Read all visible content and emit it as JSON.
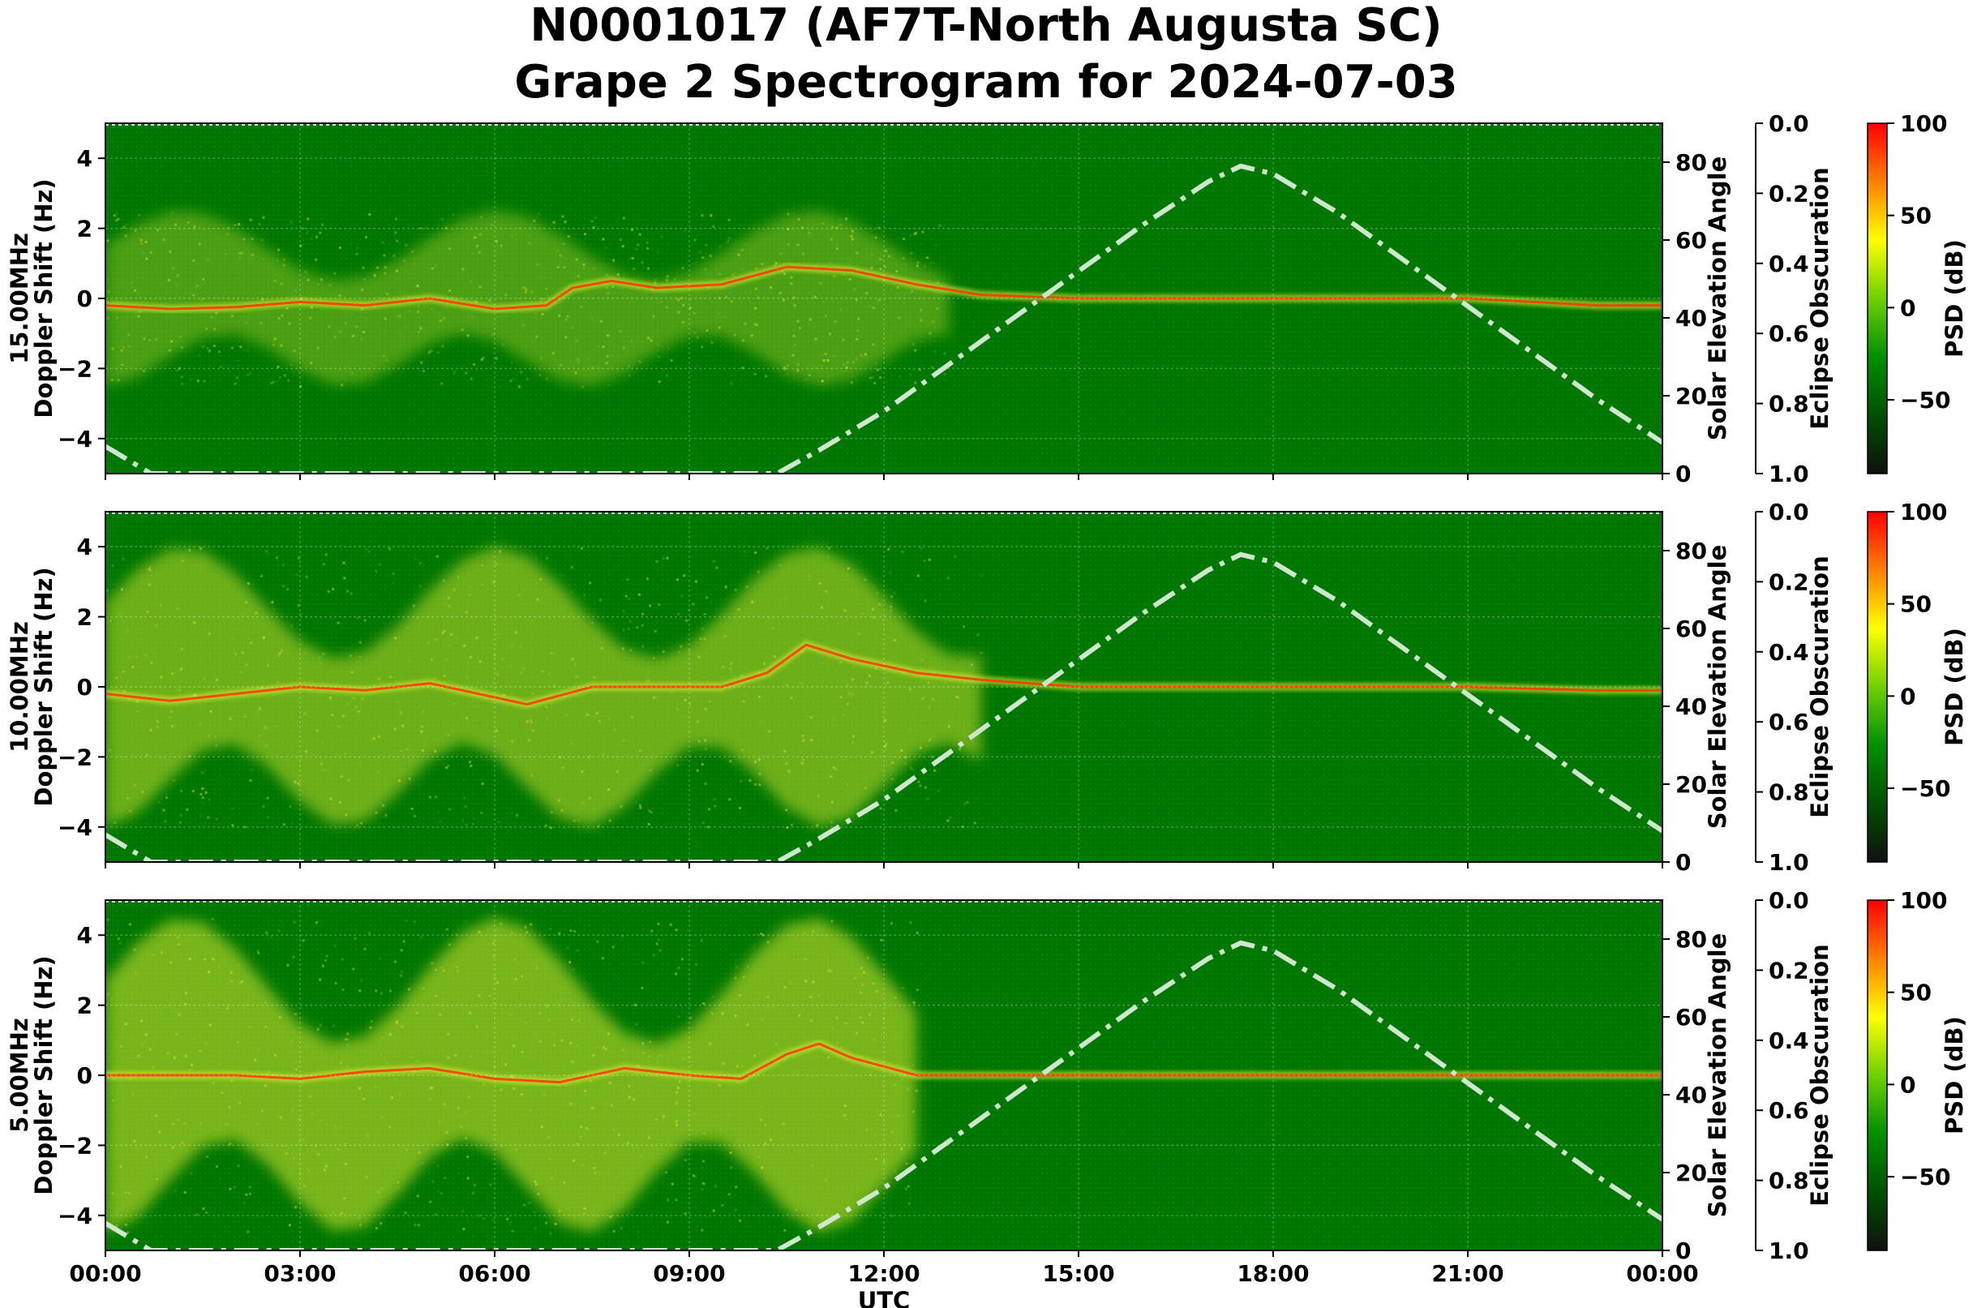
{
  "figure": {
    "title_line1": "N0001017 (AF7T-North Augusta SC)",
    "title_line2": "Grape 2 Spectrogram for 2024-07-03"
  },
  "chart_data": [
    {
      "type": "heatmap",
      "band": "15.00MHz",
      "ylabel_line1": "15.00MHz",
      "ylabel_line2": "Doppler Shift (Hz)",
      "xlabel": "",
      "x_ticks": [
        "00:00",
        "03:00",
        "06:00",
        "09:00",
        "12:00",
        "15:00",
        "18:00",
        "21:00",
        "00:00"
      ],
      "xlim_hours": [
        0,
        24
      ],
      "ylim": [
        -5,
        5
      ],
      "y_ticks": [
        4,
        2,
        0,
        -2,
        -4
      ],
      "carrier_trace": [
        [
          0,
          -0.2
        ],
        [
          1,
          -0.3
        ],
        [
          2,
          -0.25
        ],
        [
          3,
          -0.1
        ],
        [
          4,
          -0.2
        ],
        [
          5,
          0
        ],
        [
          6,
          -0.3
        ],
        [
          6.8,
          -0.2
        ],
        [
          7.2,
          0.3
        ],
        [
          7.8,
          0.5
        ],
        [
          8.5,
          0.3
        ],
        [
          9.5,
          0.4
        ],
        [
          10.5,
          0.9
        ],
        [
          11.5,
          0.8
        ],
        [
          12.5,
          0.4
        ],
        [
          13.5,
          0.1
        ],
        [
          15,
          0
        ],
        [
          18,
          0
        ],
        [
          21,
          0
        ],
        [
          23,
          -0.2
        ],
        [
          24,
          -0.2
        ]
      ],
      "solar_elevation": {
        "label": "Solar Elevation Angle",
        "ylim": [
          0,
          90
        ],
        "y_ticks": [
          80,
          60,
          40,
          20,
          0
        ],
        "points": [
          [
            0,
            7
          ],
          [
            0.7,
            0
          ],
          [
            10.35,
            0
          ],
          [
            11,
            6
          ],
          [
            12,
            16
          ],
          [
            13,
            28
          ],
          [
            14,
            40
          ],
          [
            15,
            52
          ],
          [
            16,
            64
          ],
          [
            17,
            75
          ],
          [
            17.5,
            79
          ],
          [
            18,
            77
          ],
          [
            19,
            67
          ],
          [
            20,
            55
          ],
          [
            21,
            43
          ],
          [
            22,
            31
          ],
          [
            23,
            19
          ],
          [
            24,
            8
          ]
        ]
      },
      "eclipse": {
        "label": "Eclipse Obscuration",
        "ylim": [
          1.0,
          0.0
        ],
        "y_ticks": [
          "0.0",
          "0.2",
          "0.4",
          "0.6",
          "0.8",
          "1.0"
        ]
      },
      "colorbar": {
        "label": "PSD (dB)",
        "range": [
          -90,
          100
        ],
        "ticks": [
          "100",
          "50",
          "0",
          "−50"
        ]
      }
    },
    {
      "type": "heatmap",
      "band": "10.00MHz",
      "ylabel_line1": "10.00MHz",
      "ylabel_line2": "Doppler Shift (Hz)",
      "xlabel": "",
      "x_ticks": [
        "00:00",
        "03:00",
        "06:00",
        "09:00",
        "12:00",
        "15:00",
        "18:00",
        "21:00",
        "00:00"
      ],
      "xlim_hours": [
        0,
        24
      ],
      "ylim": [
        -5,
        5
      ],
      "y_ticks": [
        4,
        2,
        0,
        -2,
        -4
      ],
      "carrier_trace": [
        [
          0,
          -0.2
        ],
        [
          1,
          -0.4
        ],
        [
          2,
          -0.2
        ],
        [
          3,
          0
        ],
        [
          4,
          -0.1
        ],
        [
          5,
          0.1
        ],
        [
          6,
          -0.3
        ],
        [
          6.5,
          -0.5
        ],
        [
          7.5,
          0
        ],
        [
          8.5,
          0
        ],
        [
          9.5,
          0
        ],
        [
          10.2,
          0.4
        ],
        [
          10.8,
          1.2
        ],
        [
          11.5,
          0.8
        ],
        [
          12.5,
          0.4
        ],
        [
          13.5,
          0.2
        ],
        [
          15,
          0
        ],
        [
          18,
          0
        ],
        [
          21,
          0
        ],
        [
          23,
          -0.1
        ],
        [
          24,
          -0.1
        ]
      ],
      "solar_elevation": {
        "label": "Solar Elevation Angle",
        "ylim": [
          0,
          90
        ],
        "y_ticks": [
          80,
          60,
          40,
          20,
          0
        ],
        "points": [
          [
            0,
            7
          ],
          [
            0.7,
            0
          ],
          [
            10.35,
            0
          ],
          [
            11,
            6
          ],
          [
            12,
            16
          ],
          [
            13,
            28
          ],
          [
            14,
            40
          ],
          [
            15,
            52
          ],
          [
            16,
            64
          ],
          [
            17,
            75
          ],
          [
            17.5,
            79
          ],
          [
            18,
            77
          ],
          [
            19,
            67
          ],
          [
            20,
            55
          ],
          [
            21,
            43
          ],
          [
            22,
            31
          ],
          [
            23,
            19
          ],
          [
            24,
            8
          ]
        ]
      },
      "eclipse": {
        "label": "Eclipse Obscuration",
        "ylim": [
          1.0,
          0.0
        ],
        "y_ticks": [
          "0.0",
          "0.2",
          "0.4",
          "0.6",
          "0.8",
          "1.0"
        ]
      },
      "colorbar": {
        "label": "PSD (dB)",
        "range": [
          -90,
          100
        ],
        "ticks": [
          "100",
          "50",
          "0",
          "−50"
        ]
      }
    },
    {
      "type": "heatmap",
      "band": "5.00MHz",
      "ylabel_line1": "5.00MHz",
      "ylabel_line2": "Doppler Shift (Hz)",
      "xlabel": "UTC",
      "x_ticks": [
        "00:00",
        "03:00",
        "06:00",
        "09:00",
        "12:00",
        "15:00",
        "18:00",
        "21:00",
        "00:00"
      ],
      "xlim_hours": [
        0,
        24
      ],
      "ylim": [
        -5,
        5
      ],
      "y_ticks": [
        4,
        2,
        0,
        -2,
        -4
      ],
      "carrier_trace": [
        [
          0,
          0
        ],
        [
          2,
          0
        ],
        [
          3,
          -0.1
        ],
        [
          4,
          0.1
        ],
        [
          5,
          0.2
        ],
        [
          6,
          -0.1
        ],
        [
          7,
          -0.2
        ],
        [
          8,
          0.2
        ],
        [
          9,
          0
        ],
        [
          9.8,
          -0.1
        ],
        [
          10.5,
          0.6
        ],
        [
          11,
          0.9
        ],
        [
          11.5,
          0.5
        ],
        [
          12.5,
          0
        ],
        [
          15,
          0
        ],
        [
          18,
          0
        ],
        [
          21,
          0
        ],
        [
          24,
          0
        ]
      ],
      "solar_elevation": {
        "label": "Solar Elevation Angle",
        "ylim": [
          0,
          90
        ],
        "y_ticks": [
          80,
          60,
          40,
          20,
          0
        ],
        "points": [
          [
            0,
            7
          ],
          [
            0.7,
            0
          ],
          [
            10.35,
            0
          ],
          [
            11,
            6
          ],
          [
            12,
            16
          ],
          [
            13,
            28
          ],
          [
            14,
            40
          ],
          [
            15,
            52
          ],
          [
            16,
            64
          ],
          [
            17,
            75
          ],
          [
            17.5,
            79
          ],
          [
            18,
            77
          ],
          [
            19,
            67
          ],
          [
            20,
            55
          ],
          [
            21,
            43
          ],
          [
            22,
            31
          ],
          [
            23,
            19
          ],
          [
            24,
            8
          ]
        ]
      },
      "eclipse": {
        "label": "Eclipse Obscuration",
        "ylim": [
          1.0,
          0.0
        ],
        "y_ticks": [
          "0.0",
          "0.2",
          "0.4",
          "0.6",
          "0.8",
          "1.0"
        ]
      },
      "colorbar": {
        "label": "PSD (dB)",
        "range": [
          -90,
          100
        ],
        "ticks": [
          "100",
          "50",
          "0",
          "−50"
        ]
      }
    }
  ],
  "colors": {
    "background": "#007700",
    "noise_bright": "#d8e830",
    "carrier": "#ff3300",
    "solar_curve": "#cfe7cf",
    "colorbar_stops": [
      "#101010",
      "#005000",
      "#009000",
      "#70d000",
      "#ffff00",
      "#ff8000",
      "#ff0000"
    ]
  }
}
